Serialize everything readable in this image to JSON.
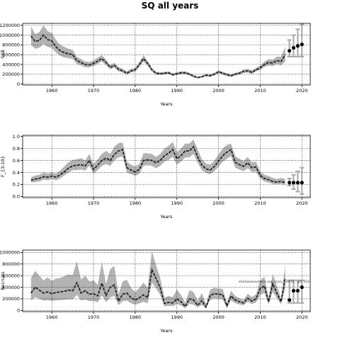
{
  "figure": {
    "title": "SQ all years"
  },
  "chart_data": [
    {
      "type": "line",
      "xlabel": "Years",
      "ylabel": "SSB",
      "xlim": [
        1953,
        2022
      ],
      "ylim": [
        -20000,
        1240000
      ],
      "xticks": [
        1960,
        1970,
        1980,
        1990,
        2000,
        2010,
        2020
      ],
      "yticks": [
        0,
        200000,
        400000,
        600000,
        800000,
        1000000,
        1200000
      ],
      "ytick_labels": [
        "0",
        "200000",
        "400000",
        "600000",
        "800000",
        "1000000",
        "1200000"
      ],
      "grid": true,
      "x": [
        1955,
        1956,
        1957,
        1958,
        1959,
        1960,
        1961,
        1962,
        1963,
        1964,
        1965,
        1966,
        1967,
        1968,
        1969,
        1970,
        1971,
        1972,
        1973,
        1974,
        1975,
        1976,
        1977,
        1978,
        1979,
        1980,
        1981,
        1982,
        1983,
        1984,
        1985,
        1986,
        1987,
        1988,
        1989,
        1990,
        1991,
        1992,
        1993,
        1994,
        1995,
        1996,
        1997,
        1998,
        1999,
        2000,
        2001,
        2002,
        2003,
        2004,
        2005,
        2006,
        2007,
        2008,
        2009,
        2010,
        2011,
        2012,
        2013,
        2014,
        2015,
        2016
      ],
      "series": [
        {
          "values": [
            980000,
            870000,
            890000,
            1000000,
            910000,
            880000,
            760000,
            680000,
            640000,
            620000,
            600000,
            480000,
            440000,
            400000,
            390000,
            420000,
            470000,
            520000,
            440000,
            340000,
            380000,
            300000,
            270000,
            220000,
            270000,
            290000,
            400000,
            520000,
            420000,
            290000,
            220000,
            210000,
            220000,
            230000,
            190000,
            210000,
            230000,
            230000,
            200000,
            160000,
            130000,
            150000,
            180000,
            170000,
            200000,
            250000,
            220000,
            190000,
            170000,
            200000,
            220000,
            260000,
            270000,
            240000,
            290000,
            330000,
            400000,
            440000,
            430000,
            480000,
            460000,
            600000
          ]
        },
        {
          "values": [
            1180000,
            1020000,
            1060000,
            1200000,
            1080000,
            1040000,
            900000,
            800000,
            760000,
            720000,
            700000,
            560000,
            510000,
            460000,
            450000,
            480000,
            540000,
            590000,
            500000,
            390000,
            430000,
            350000,
            310000,
            260000,
            310000,
            330000,
            450000,
            590000,
            470000,
            330000,
            250000,
            240000,
            250000,
            260000,
            220000,
            240000,
            260000,
            260000,
            230000,
            190000,
            150000,
            170000,
            210000,
            200000,
            230000,
            280000,
            250000,
            220000,
            200000,
            230000,
            250000,
            300000,
            310000,
            280000,
            330000,
            380000,
            460000,
            510000,
            500000,
            560000,
            560000,
            760000
          ]
        },
        {
          "values": [
            800000,
            720000,
            740000,
            820000,
            760000,
            740000,
            640000,
            580000,
            540000,
            530000,
            510000,
            410000,
            380000,
            340000,
            340000,
            370000,
            410000,
            460000,
            390000,
            300000,
            340000,
            260000,
            235000,
            190000,
            235000,
            255000,
            350000,
            460000,
            375000,
            255000,
            195000,
            185000,
            195000,
            205000,
            165000,
            185000,
            205000,
            205000,
            175000,
            135000,
            115000,
            130000,
            155000,
            145000,
            175000,
            225000,
            195000,
            165000,
            145000,
            175000,
            195000,
            225000,
            235000,
            205000,
            255000,
            290000,
            350000,
            380000,
            370000,
            410000,
            380000,
            460000
          ]
        }
      ],
      "projection": {
        "x": [
          2017,
          2018,
          2019,
          2020
        ],
        "values": [
          680000,
          740000,
          780000,
          810000
        ],
        "upper": [
          900000,
          1000000,
          1120000,
          1220000
        ],
        "lower": [
          560000,
          560000,
          560000,
          560000
        ]
      }
    },
    {
      "type": "line",
      "xlabel": "Years",
      "ylabel": "F_{3-10}",
      "xlim": [
        1953,
        2022
      ],
      "ylim": [
        -0.02,
        1.02
      ],
      "xticks": [
        1960,
        1970,
        1980,
        1990,
        2000,
        2010,
        2020
      ],
      "yticks": [
        0.0,
        0.2,
        0.4,
        0.6,
        0.8,
        1.0
      ],
      "ytick_labels": [
        "0.0",
        "0.2",
        "0.4",
        "0.6",
        "0.8",
        "1.0"
      ],
      "grid": true,
      "x": [
        1955,
        1956,
        1957,
        1958,
        1959,
        1960,
        1961,
        1962,
        1963,
        1964,
        1965,
        1966,
        1967,
        1968,
        1969,
        1970,
        1971,
        1972,
        1973,
        1974,
        1975,
        1976,
        1977,
        1978,
        1979,
        1980,
        1981,
        1982,
        1983,
        1984,
        1985,
        1986,
        1987,
        1988,
        1989,
        1990,
        1991,
        1992,
        1993,
        1994,
        1995,
        1996,
        1997,
        1998,
        1999,
        2000,
        2001,
        2002,
        2003,
        2004,
        2005,
        2006,
        2007,
        2008,
        2009,
        2010,
        2011,
        2012,
        2013,
        2014,
        2015,
        2016
      ],
      "series": [
        {
          "values": [
            0.27,
            0.29,
            0.3,
            0.33,
            0.32,
            0.34,
            0.32,
            0.36,
            0.41,
            0.47,
            0.51,
            0.52,
            0.53,
            0.51,
            0.6,
            0.45,
            0.52,
            0.6,
            0.64,
            0.6,
            0.7,
            0.76,
            0.78,
            0.48,
            0.44,
            0.41,
            0.45,
            0.6,
            0.61,
            0.6,
            0.56,
            0.6,
            0.68,
            0.72,
            0.78,
            0.63,
            0.68,
            0.76,
            0.76,
            0.83,
            0.66,
            0.52,
            0.46,
            0.44,
            0.5,
            0.59,
            0.68,
            0.74,
            0.78,
            0.57,
            0.53,
            0.5,
            0.56,
            0.48,
            0.49,
            0.35,
            0.3,
            0.28,
            0.25,
            0.24,
            0.25,
            0.23
          ]
        },
        {
          "values": [
            0.32,
            0.35,
            0.36,
            0.4,
            0.38,
            0.4,
            0.38,
            0.43,
            0.5,
            0.57,
            0.61,
            0.62,
            0.64,
            0.6,
            0.71,
            0.54,
            0.62,
            0.71,
            0.76,
            0.71,
            0.83,
            0.89,
            0.9,
            0.58,
            0.53,
            0.5,
            0.54,
            0.72,
            0.72,
            0.71,
            0.66,
            0.71,
            0.8,
            0.84,
            0.91,
            0.74,
            0.8,
            0.88,
            0.88,
            0.95,
            0.78,
            0.62,
            0.55,
            0.53,
            0.6,
            0.7,
            0.8,
            0.86,
            0.88,
            0.67,
            0.63,
            0.59,
            0.66,
            0.57,
            0.58,
            0.41,
            0.36,
            0.34,
            0.31,
            0.29,
            0.31,
            0.29
          ]
        },
        {
          "values": [
            0.23,
            0.24,
            0.25,
            0.28,
            0.27,
            0.29,
            0.27,
            0.3,
            0.35,
            0.4,
            0.44,
            0.44,
            0.45,
            0.43,
            0.51,
            0.38,
            0.44,
            0.51,
            0.54,
            0.51,
            0.6,
            0.65,
            0.67,
            0.4,
            0.37,
            0.34,
            0.38,
            0.51,
            0.52,
            0.51,
            0.47,
            0.51,
            0.58,
            0.61,
            0.66,
            0.53,
            0.58,
            0.65,
            0.65,
            0.71,
            0.56,
            0.44,
            0.39,
            0.37,
            0.42,
            0.5,
            0.58,
            0.63,
            0.67,
            0.48,
            0.45,
            0.42,
            0.47,
            0.41,
            0.41,
            0.3,
            0.25,
            0.23,
            0.21,
            0.2,
            0.21,
            0.19
          ]
        }
      ],
      "projection": {
        "x": [
          2017,
          2018,
          2019,
          2020
        ],
        "values": [
          0.23,
          0.23,
          0.23,
          0.23
        ],
        "upper": [
          0.3,
          0.36,
          0.42,
          0.48
        ],
        "lower": [
          0.18,
          0.12,
          0.08,
          0.04
        ]
      }
    },
    {
      "type": "line",
      "xlabel": "Years",
      "ylabel": "Recruits",
      "xlim": [
        1953,
        2022
      ],
      "ylim": [
        -20000,
        1040000
      ],
      "xticks": [
        1960,
        1970,
        1980,
        1990,
        2000,
        2010,
        2020
      ],
      "yticks": [
        0,
        200000,
        400000,
        600000,
        800000,
        1000000
      ],
      "ytick_labels": [
        "0",
        "200000",
        "400000",
        "600000",
        "800000",
        "1000000"
      ],
      "grid": true,
      "annotation": "stockassessment.org: /cod_r10416 , git: 503",
      "x": [
        1955,
        1956,
        1957,
        1958,
        1959,
        1960,
        1961,
        1962,
        1963,
        1964,
        1965,
        1966,
        1967,
        1968,
        1969,
        1970,
        1971,
        1972,
        1973,
        1974,
        1975,
        1976,
        1977,
        1978,
        1979,
        1980,
        1981,
        1982,
        1983,
        1984,
        1985,
        1986,
        1987,
        1988,
        1989,
        1990,
        1991,
        1992,
        1993,
        1994,
        1995,
        1996,
        1997,
        1998,
        1999,
        2000,
        2001,
        2002,
        2003,
        2004,
        2005,
        2006,
        2007,
        2008,
        2009,
        2010,
        2011,
        2012,
        2013,
        2014,
        2015,
        2016
      ],
      "series": [
        {
          "values": [
            300000,
            400000,
            350000,
            300000,
            320000,
            290000,
            310000,
            320000,
            330000,
            350000,
            340000,
            480000,
            300000,
            340000,
            280000,
            290000,
            250000,
            470000,
            260000,
            400000,
            440000,
            160000,
            280000,
            300000,
            220000,
            180000,
            220000,
            270000,
            220000,
            700000,
            550000,
            390000,
            120000,
            140000,
            130000,
            200000,
            150000,
            70000,
            200000,
            180000,
            90000,
            170000,
            60000,
            260000,
            290000,
            280000,
            270000,
            80000,
            250000,
            180000,
            150000,
            130000,
            210000,
            160000,
            200000,
            380000,
            420000,
            150000,
            460000,
            300000,
            150000,
            560000
          ]
        },
        {
          "values": [
            560000,
            680000,
            600000,
            520000,
            570000,
            510000,
            550000,
            560000,
            590000,
            620000,
            610000,
            850000,
            530000,
            600000,
            500000,
            520000,
            440000,
            830000,
            460000,
            710000,
            770000,
            280000,
            500000,
            530000,
            390000,
            320000,
            390000,
            480000,
            390000,
            1020000,
            780000,
            560000,
            220000,
            250000,
            230000,
            360000,
            270000,
            130000,
            350000,
            320000,
            170000,
            300000,
            110000,
            360000,
            390000,
            380000,
            370000,
            140000,
            340000,
            250000,
            210000,
            180000,
            290000,
            230000,
            280000,
            520000,
            580000,
            210000,
            630000,
            420000,
            210000,
            780000
          ]
        },
        {
          "values": [
            170000,
            230000,
            200000,
            170000,
            180000,
            165000,
            175000,
            180000,
            185000,
            195000,
            190000,
            270000,
            170000,
            190000,
            160000,
            165000,
            140000,
            260000,
            145000,
            225000,
            250000,
            90000,
            160000,
            170000,
            125000,
            100000,
            125000,
            150000,
            125000,
            480000,
            380000,
            270000,
            70000,
            80000,
            75000,
            110000,
            85000,
            40000,
            115000,
            100000,
            55000,
            95000,
            35000,
            185000,
            210000,
            200000,
            195000,
            45000,
            175000,
            125000,
            105000,
            90000,
            150000,
            110000,
            140000,
            270000,
            300000,
            105000,
            320000,
            210000,
            105000,
            380000
          ]
        }
      ],
      "projection": {
        "x": [
          2017,
          2018,
          2019,
          2020
        ],
        "values": [
          180000,
          340000,
          340000,
          400000
        ],
        "upper": [
          520000,
          520000,
          520000,
          520000
        ],
        "lower": [
          130000,
          130000,
          130000,
          130000
        ]
      }
    }
  ]
}
